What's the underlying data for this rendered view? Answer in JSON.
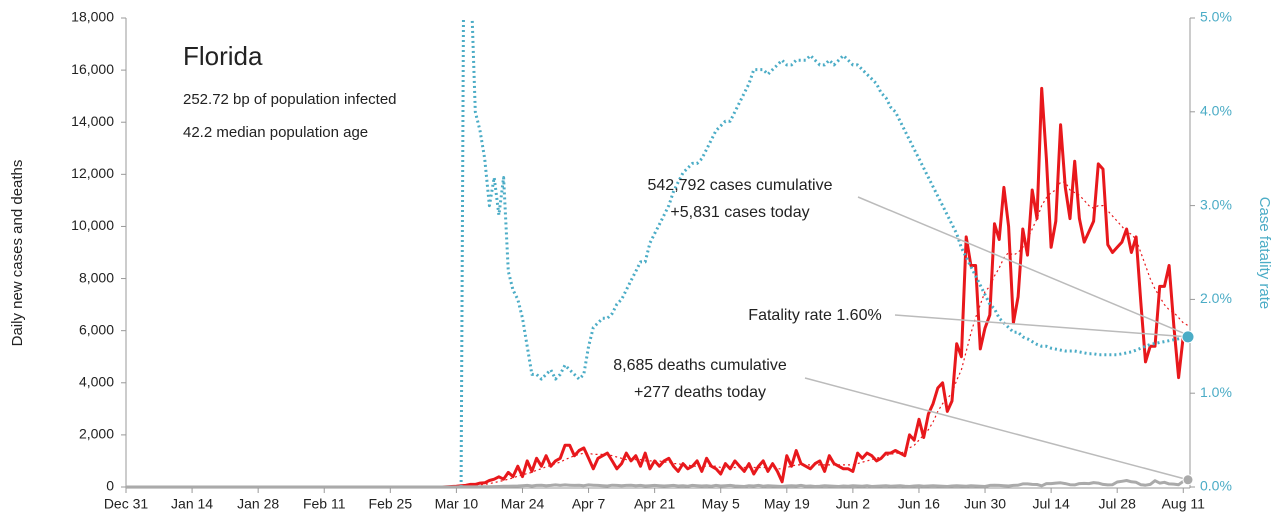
{
  "chart_data": {
    "type": "line",
    "title": "Florida",
    "subtitle": [
      "252.72 bp of population infected",
      "42.2 median population age"
    ],
    "y_label": "Daily new cases and deaths",
    "y2_label": "Case fatality rate",
    "annotations": [
      [
        "542,792 cases cumulative",
        "+5,831 cases today"
      ],
      [
        "Fatality rate 1.60%"
      ],
      [
        "8,685 deaths cumulative",
        "+277 deaths today"
      ]
    ],
    "ylim": [
      0,
      18000
    ],
    "yticks": [
      0,
      {
        "value": 2000,
        "label": "2,000"
      },
      {
        "value": 4000,
        "label": "4,000"
      },
      {
        "value": 6000,
        "label": "6,000"
      },
      {
        "value": 8000,
        "label": "8,000"
      },
      {
        "value": 10000,
        "label": "10,000"
      },
      {
        "value": 12000,
        "label": "12,000"
      },
      {
        "value": 14000,
        "label": "14,000"
      },
      {
        "value": 16000,
        "label": "16,000"
      },
      {
        "value": 18000,
        "label": "18,000"
      }
    ],
    "y2lim": [
      0,
      5
    ],
    "y2ticks": [
      {
        "value": 0,
        "label": "0.0%"
      },
      {
        "value": 1,
        "label": "1.0%"
      },
      {
        "value": 2,
        "label": "2.0%"
      },
      {
        "value": 3,
        "label": "3.0%"
      },
      {
        "value": 4,
        "label": "4.0%"
      },
      {
        "value": 5,
        "label": "5.0%"
      }
    ],
    "xticks": [
      "Dec 31",
      "Jan 14",
      "Jan 28",
      "Feb 11",
      "Feb 25",
      "Mar 10",
      "Mar 24",
      "Apr 7",
      "Apr 21",
      "May 5",
      "May 19",
      "Jun 2",
      "Jun 16",
      "Jun 30",
      "Jul 14",
      "Jul 28",
      "Aug 11"
    ],
    "x": [
      "Dec 31",
      "Jan 1",
      "Jan 2",
      "Jan 3",
      "Jan 4",
      "Jan 5",
      "Jan 6",
      "Jan 7",
      "Jan 8",
      "Jan 9",
      "Jan 10",
      "Jan 11",
      "Jan 12",
      "Jan 13",
      "Jan 14",
      "Jan 15",
      "Jan 16",
      "Jan 17",
      "Jan 18",
      "Jan 19",
      "Jan 20",
      "Jan 21",
      "Jan 22",
      "Jan 23",
      "Jan 24",
      "Jan 25",
      "Jan 26",
      "Jan 27",
      "Jan 28",
      "Jan 29",
      "Jan 30",
      "Jan 31",
      "Feb 1",
      "Feb 2",
      "Feb 3",
      "Feb 4",
      "Feb 5",
      "Feb 6",
      "Feb 7",
      "Feb 8",
      "Feb 9",
      "Feb 10",
      "Feb 11",
      "Feb 12",
      "Feb 13",
      "Feb 14",
      "Feb 15",
      "Feb 16",
      "Feb 17",
      "Feb 18",
      "Feb 19",
      "Feb 20",
      "Feb 21",
      "Feb 22",
      "Feb 23",
      "Feb 24",
      "Feb 25",
      "Feb 26",
      "Feb 27",
      "Feb 28",
      "Feb 29",
      "Mar 1",
      "Mar 2",
      "Mar 3",
      "Mar 4",
      "Mar 5",
      "Mar 6",
      "Mar 7",
      "Mar 8",
      "Mar 9",
      "Mar 10",
      "Mar 11",
      "Mar 12",
      "Mar 13",
      "Mar 14",
      "Mar 15",
      "Mar 16",
      "Mar 17",
      "Mar 18",
      "Mar 19",
      "Mar 20",
      "Mar 21",
      "Mar 22",
      "Mar 23",
      "Mar 24",
      "Mar 25",
      "Mar 26",
      "Mar 27",
      "Mar 28",
      "Mar 29",
      "Mar 30",
      "Mar 31",
      "Apr 1",
      "Apr 2",
      "Apr 3",
      "Apr 4",
      "Apr 5",
      "Apr 6",
      "Apr 7",
      "Apr 8",
      "Apr 9",
      "Apr 10",
      "Apr 11",
      "Apr 12",
      "Apr 13",
      "Apr 14",
      "Apr 15",
      "Apr 16",
      "Apr 17",
      "Apr 18",
      "Apr 19",
      "Apr 20",
      "Apr 21",
      "Apr 22",
      "Apr 23",
      "Apr 24",
      "Apr 25",
      "Apr 26",
      "Apr 27",
      "Apr 28",
      "Apr 29",
      "Apr 30",
      "May 1",
      "May 2",
      "May 3",
      "May 4",
      "May 5",
      "May 6",
      "May 7",
      "May 8",
      "May 9",
      "May 10",
      "May 11",
      "May 12",
      "May 13",
      "May 14",
      "May 15",
      "May 16",
      "May 17",
      "May 18",
      "May 19",
      "May 20",
      "May 21",
      "May 22",
      "May 23",
      "May 24",
      "May 25",
      "May 26",
      "May 27",
      "May 28",
      "May 29",
      "May 30",
      "May 31",
      "Jun 1",
      "Jun 2",
      "Jun 3",
      "Jun 4",
      "Jun 5",
      "Jun 6",
      "Jun 7",
      "Jun 8",
      "Jun 9",
      "Jun 10",
      "Jun 11",
      "Jun 12",
      "Jun 13",
      "Jun 14",
      "Jun 15",
      "Jun 16",
      "Jun 17",
      "Jun 18",
      "Jun 19",
      "Jun 20",
      "Jun 21",
      "Jun 22",
      "Jun 23",
      "Jun 24",
      "Jun 25",
      "Jun 26",
      "Jun 27",
      "Jun 28",
      "Jun 29",
      "Jun 30",
      "Jul 1",
      "Jul 2",
      "Jul 3",
      "Jul 4",
      "Jul 5",
      "Jul 6",
      "Jul 7",
      "Jul 8",
      "Jul 9",
      "Jul 10",
      "Jul 11",
      "Jul 12",
      "Jul 13",
      "Jul 14",
      "Jul 15",
      "Jul 16",
      "Jul 17",
      "Jul 18",
      "Jul 19",
      "Jul 20",
      "Jul 21",
      "Jul 22",
      "Jul 23",
      "Jul 24",
      "Jul 25",
      "Jul 26",
      "Jul 27",
      "Jul 28",
      "Jul 29",
      "Jul 30",
      "Jul 31",
      "Aug 1",
      "Aug 2",
      "Aug 3",
      "Aug 4",
      "Aug 5",
      "Aug 6",
      "Aug 7",
      "Aug 8",
      "Aug 9",
      "Aug 10",
      "Aug 11",
      "Aug 12"
    ],
    "series": [
      {
        "color": "#e8181c",
        "style": "solid",
        "width": 3,
        "values": [
          0,
          0,
          0,
          0,
          0,
          0,
          0,
          0,
          0,
          0,
          0,
          0,
          0,
          0,
          0,
          0,
          0,
          0,
          0,
          0,
          0,
          0,
          0,
          0,
          0,
          0,
          0,
          0,
          0,
          0,
          0,
          0,
          0,
          0,
          0,
          0,
          0,
          0,
          0,
          0,
          0,
          0,
          0,
          0,
          0,
          0,
          0,
          0,
          0,
          0,
          0,
          0,
          0,
          0,
          0,
          0,
          0,
          0,
          0,
          0,
          0,
          0,
          0,
          0,
          0,
          0,
          0,
          0,
          10,
          20,
          30,
          50,
          60,
          100,
          100,
          150,
          160,
          250,
          300,
          390,
          300,
          560,
          400,
          800,
          400,
          1000,
          600,
          1100,
          800,
          1200,
          800,
          1000,
          1100,
          1600,
          1600,
          1200,
          1400,
          1500,
          1100,
          700,
          1100,
          1200,
          1300,
          1000,
          700,
          900,
          1300,
          1000,
          1200,
          800,
          1300,
          700,
          1000,
          800,
          1000,
          1100,
          800,
          600,
          900,
          700,
          800,
          1000,
          600,
          1100,
          800,
          700,
          500,
          900,
          700,
          1000,
          800,
          600,
          900,
          500,
          800,
          1000,
          600,
          900,
          600,
          200,
          1200,
          800,
          1400,
          900,
          800,
          700,
          900,
          1000,
          600,
          1200,
          900,
          800,
          700,
          700,
          600,
          1300,
          1100,
          1300,
          1200,
          1000,
          1100,
          1300,
          1300,
          1400,
          1300,
          1200,
          2000,
          1800,
          2600,
          1900,
          2800,
          3200,
          3800,
          4000,
          2900,
          3300,
          5500,
          5000,
          9600,
          8500,
          8500,
          5300,
          6100,
          6600,
          10100,
          9500,
          11500,
          10000,
          6300,
          7300,
          9900,
          8900,
          11400,
          10300,
          15300,
          12600,
          9200,
          10200,
          13900,
          11500,
          10300,
          12500,
          10300,
          9400,
          9800,
          10200,
          12400,
          12200,
          9300,
          9000,
          9200,
          9400,
          9900,
          9000,
          9600,
          7100,
          4800,
          5400,
          5400,
          7700,
          7700,
          8500,
          6200,
          4200,
          5800,
          5831
        ]
      },
      {
        "color": "#e8181c",
        "style": "dotted",
        "width": 1.2,
        "values": [
          0,
          0,
          0,
          0,
          0,
          0,
          0,
          0,
          0,
          0,
          0,
          0,
          0,
          0,
          0,
          0,
          0,
          0,
          0,
          0,
          0,
          0,
          0,
          0,
          0,
          0,
          0,
          0,
          0,
          0,
          0,
          0,
          0,
          0,
          0,
          0,
          0,
          0,
          0,
          0,
          0,
          0,
          0,
          0,
          0,
          0,
          0,
          0,
          0,
          0,
          0,
          0,
          0,
          0,
          0,
          0,
          0,
          0,
          0,
          0,
          0,
          0,
          0,
          0,
          0,
          0,
          0,
          0,
          0,
          10,
          20,
          30,
          40,
          50,
          60,
          80,
          100,
          130,
          170,
          210,
          250,
          300,
          350,
          420,
          460,
          520,
          560,
          650,
          700,
          780,
          830,
          900,
          950,
          1050,
          1120,
          1200,
          1250,
          1300,
          1300,
          1250,
          1250,
          1250,
          1250,
          1200,
          1150,
          1100,
          1050,
          1050,
          1050,
          1050,
          1000,
          1000,
          1000,
          1000,
          950,
          950,
          900,
          900,
          850,
          850,
          800,
          800,
          800,
          800,
          800,
          800,
          750,
          750,
          750,
          750,
          750,
          750,
          750,
          750,
          750,
          750,
          750,
          750,
          700,
          700,
          750,
          800,
          850,
          850,
          850,
          850,
          850,
          850,
          850,
          850,
          850,
          850,
          850,
          850,
          850,
          900,
          950,
          1000,
          1050,
          1100,
          1150,
          1200,
          1250,
          1300,
          1300,
          1350,
          1500,
          1600,
          1800,
          2000,
          2200,
          2500,
          2900,
          3200,
          3400,
          3600,
          4100,
          4500,
          5200,
          5900,
          6500,
          7000,
          7500,
          7700,
          8100,
          8400,
          8800,
          9000,
          8900,
          9000,
          9200,
          9500,
          9900,
          10300,
          10800,
          11100,
          11300,
          11400,
          11700,
          11700,
          11400,
          11300,
          11200,
          11000,
          10800,
          10700,
          10800,
          10800,
          10600,
          10400,
          10200,
          10000,
          9800,
          9700,
          9500,
          9000,
          8500,
          8000,
          7600,
          7300,
          7000,
          6800,
          6700,
          6500,
          6300,
          6200
        ]
      },
      {
        "color": "#4bacc6",
        "style": "dotted",
        "width": 3,
        "axis": "y2",
        "values": [
          null,
          null,
          null,
          null,
          null,
          null,
          null,
          null,
          null,
          null,
          null,
          null,
          null,
          null,
          null,
          null,
          null,
          null,
          null,
          null,
          null,
          null,
          null,
          null,
          null,
          null,
          null,
          null,
          null,
          null,
          null,
          null,
          null,
          null,
          null,
          null,
          null,
          null,
          null,
          null,
          null,
          null,
          null,
          null,
          null,
          null,
          null,
          null,
          null,
          null,
          null,
          null,
          null,
          null,
          null,
          null,
          null,
          null,
          null,
          null,
          null,
          null,
          null,
          null,
          null,
          null,
          null,
          null,
          null,
          null,
          null,
          0,
          10,
          5.5,
          4.0,
          3.8,
          3.5,
          3.0,
          3.3,
          2.9,
          3.3,
          2.3,
          2.1,
          2.0,
          1.8,
          1.5,
          1.2,
          1.2,
          1.15,
          1.2,
          1.25,
          1.15,
          1.2,
          1.3,
          1.25,
          1.2,
          1.15,
          1.2,
          1.5,
          1.7,
          1.75,
          1.8,
          1.8,
          1.85,
          1.95,
          2.0,
          2.1,
          2.2,
          2.3,
          2.4,
          2.4,
          2.6,
          2.7,
          2.8,
          2.9,
          3.0,
          3.15,
          3.25,
          3.35,
          3.4,
          3.45,
          3.45,
          3.5,
          3.6,
          3.7,
          3.8,
          3.85,
          3.9,
          3.9,
          4.0,
          4.1,
          4.2,
          4.3,
          4.45,
          4.45,
          4.45,
          4.4,
          4.45,
          4.5,
          4.55,
          4.5,
          4.5,
          4.55,
          4.55,
          4.55,
          4.6,
          4.55,
          4.5,
          4.5,
          4.55,
          4.5,
          4.55,
          4.6,
          4.55,
          4.5,
          4.5,
          4.45,
          4.4,
          4.35,
          4.3,
          4.2,
          4.15,
          4.05,
          4.0,
          3.9,
          3.8,
          3.7,
          3.6,
          3.5,
          3.4,
          3.3,
          3.2,
          3.1,
          3.0,
          2.9,
          2.8,
          2.7,
          2.55,
          2.45,
          2.35,
          2.25,
          2.15,
          2.05,
          1.95,
          1.9,
          1.8,
          1.75,
          1.7,
          1.65,
          1.65,
          1.6,
          1.58,
          1.55,
          1.52,
          1.5,
          1.5,
          1.48,
          1.47,
          1.46,
          1.45,
          1.45,
          1.45,
          1.44,
          1.43,
          1.42,
          1.42,
          1.41,
          1.41,
          1.41,
          1.41,
          1.41,
          1.42,
          1.43,
          1.44,
          1.46,
          1.48,
          1.5,
          1.52,
          1.53,
          1.54,
          1.55,
          1.56,
          1.57,
          1.58,
          1.59,
          1.6
        ]
      },
      {
        "color": "#aaaaaa",
        "style": "solid",
        "width": 3,
        "values": [
          0,
          0,
          0,
          0,
          0,
          0,
          0,
          0,
          0,
          0,
          0,
          0,
          0,
          0,
          0,
          0,
          0,
          0,
          0,
          0,
          0,
          0,
          0,
          0,
          0,
          0,
          0,
          0,
          0,
          0,
          0,
          0,
          0,
          0,
          0,
          0,
          0,
          0,
          0,
          0,
          0,
          0,
          0,
          0,
          0,
          0,
          0,
          0,
          0,
          0,
          0,
          0,
          0,
          0,
          0,
          0,
          0,
          0,
          0,
          0,
          0,
          0,
          0,
          0,
          0,
          0,
          0,
          0,
          0,
          0,
          0,
          2,
          3,
          5,
          5,
          8,
          10,
          12,
          15,
          20,
          25,
          30,
          35,
          40,
          50,
          60,
          40,
          60,
          70,
          50,
          60,
          80,
          60,
          80,
          70,
          60,
          70,
          50,
          80,
          70,
          60,
          50,
          40,
          70,
          60,
          50,
          60,
          70,
          50,
          60,
          40,
          50,
          60,
          50,
          40,
          50,
          60,
          40,
          50,
          30,
          60,
          50,
          40,
          50,
          30,
          60,
          40,
          50,
          60,
          40,
          30,
          20,
          50,
          40,
          60,
          30,
          50,
          40,
          30,
          20,
          40,
          50,
          40,
          60,
          30,
          40,
          20,
          30,
          50,
          40,
          30,
          20,
          40,
          30,
          50,
          40,
          30,
          50,
          20,
          30,
          40,
          50,
          30,
          40,
          50,
          30,
          20,
          40,
          50,
          30,
          40,
          50,
          40,
          30,
          20,
          40,
          50,
          40,
          30,
          50,
          40,
          30,
          20,
          60,
          70,
          60,
          50,
          40,
          60,
          70,
          120,
          120,
          100,
          95,
          45,
          130,
          130,
          150,
          160,
          130,
          90,
          80,
          130,
          140,
          130,
          170,
          150,
          100,
          80,
          90,
          190,
          220,
          250,
          200,
          180,
          90,
          70,
          100,
          240,
          150,
          180,
          120,
          110,
          90,
          220,
          277
        ]
      }
    ]
  }
}
